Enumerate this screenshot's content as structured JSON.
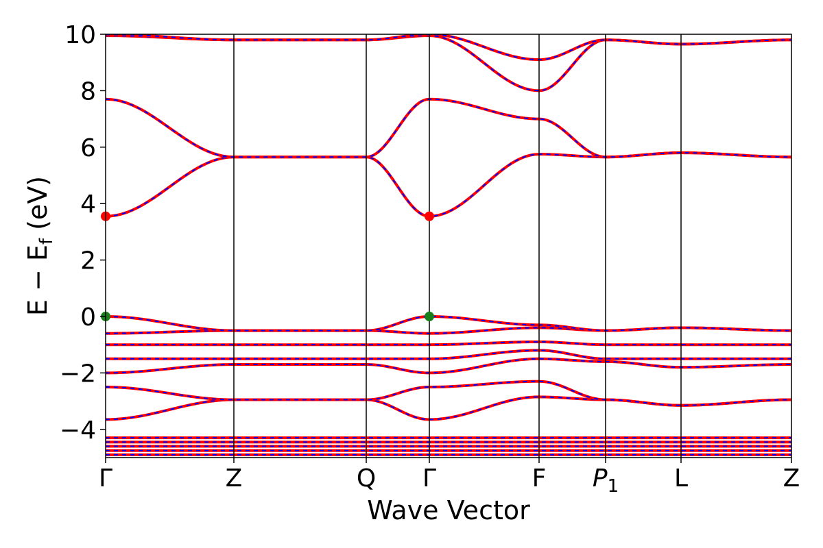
{
  "chart_data": {
    "type": "line",
    "title": "",
    "xlabel": "Wave Vector",
    "ylabel": "E − E",
    "ylabel_subscript": "f",
    "ylabel_unit": " (eV)",
    "ylim": [
      -5,
      10
    ],
    "yticks": [
      -4,
      -2,
      0,
      2,
      4,
      6,
      8,
      10
    ],
    "ytick_labels": [
      "−4",
      "−2",
      "0",
      "2",
      "4",
      "6",
      "8",
      "10"
    ],
    "xlim": [
      0,
      1
    ],
    "kpoints": [
      {
        "label": "Γ",
        "x": 0.0
      },
      {
        "label": "Z",
        "x": 0.187
      },
      {
        "label": "Q",
        "x": 0.38
      },
      {
        "label": "Γ",
        "x": 0.472
      },
      {
        "label": "F",
        "x": 0.632
      },
      {
        "label": "P",
        "sub": "1",
        "x": 0.729
      },
      {
        "label": "L",
        "x": 0.839
      },
      {
        "label": "Z",
        "x": 1.0
      }
    ],
    "band_colors": {
      "primary": "#ff0000",
      "secondary": "#0000ff"
    },
    "markers": [
      {
        "name": "cbm",
        "x": 0.0,
        "y": 3.55,
        "color": "#ff0000"
      },
      {
        "name": "cbm",
        "x": 0.472,
        "y": 3.55,
        "color": "#ff0000"
      },
      {
        "name": "vbm",
        "x": 0.0,
        "y": 0.0,
        "color": "#1a7f1a"
      },
      {
        "name": "vbm",
        "x": 0.472,
        "y": 0.0,
        "color": "#1a7f1a"
      }
    ],
    "series": [
      {
        "values": [
          -3.65,
          -2.95,
          -2.95,
          -3.65,
          -2.85,
          -2.95,
          -3.15,
          -2.95
        ]
      },
      {
        "values": [
          -2.5,
          -2.95,
          -2.95,
          -2.5,
          -2.3,
          -2.95,
          -3.15,
          -2.95
        ]
      },
      {
        "values": [
          -2.0,
          -1.7,
          -1.7,
          -2.0,
          -1.5,
          -1.6,
          -1.8,
          -1.7
        ]
      },
      {
        "values": [
          -1.5,
          -1.5,
          -1.5,
          -1.5,
          -1.2,
          -1.5,
          -1.5,
          -1.5
        ]
      },
      {
        "values": [
          -1.0,
          -1.0,
          -1.0,
          -1.0,
          -0.9,
          -1.0,
          -1.0,
          -1.0
        ]
      },
      {
        "values": [
          -0.6,
          -0.5,
          -0.5,
          -0.6,
          -0.4,
          -0.5,
          -0.4,
          -0.5
        ]
      },
      {
        "values": [
          0.0,
          -0.5,
          -0.5,
          0.0,
          -0.3,
          -0.5,
          -0.4,
          -0.5
        ]
      },
      {
        "values": [
          3.55,
          5.65,
          5.65,
          3.55,
          5.75,
          5.65,
          5.8,
          5.65
        ]
      },
      {
        "values": [
          7.7,
          5.65,
          5.65,
          7.7,
          7.0,
          5.65,
          5.8,
          5.65
        ]
      },
      {
        "values": [
          9.95,
          9.8,
          9.8,
          9.95,
          8.0,
          9.8,
          9.65,
          9.8
        ]
      },
      {
        "values": [
          10.0,
          9.8,
          9.8,
          10.0,
          9.1,
          9.8,
          9.65,
          9.8
        ]
      }
    ],
    "core_bands": [
      -4.3,
      -4.45,
      -4.6,
      -4.75,
      -4.9
    ],
    "grid": false,
    "legend": "none"
  }
}
